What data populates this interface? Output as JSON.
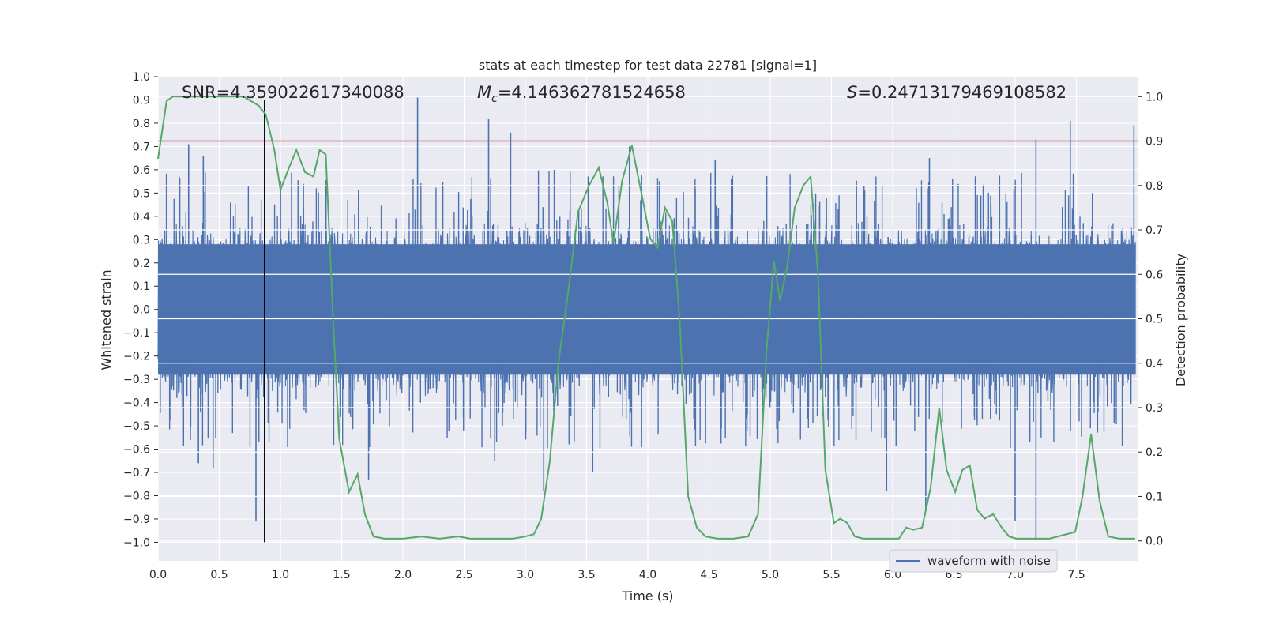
{
  "chart_data": {
    "type": "line",
    "title": "stats at each timestep for test data 22781 [signal=1]",
    "xlabel": "Time (s)",
    "ylabel_left": "Whitened strain",
    "ylabel_right": "Detection probability",
    "xlim": [
      0.0,
      8.0
    ],
    "ylim_left": [
      -1.08,
      1.0
    ],
    "ylim_right": [
      -0.045,
      1.045
    ],
    "x_ticks": [
      "0.0",
      "0.5",
      "1.0",
      "1.5",
      "2.0",
      "2.5",
      "3.0",
      "3.5",
      "4.0",
      "4.5",
      "5.0",
      "5.5",
      "6.0",
      "6.5",
      "7.0",
      "7.5"
    ],
    "x_tick_values": [
      0.0,
      0.5,
      1.0,
      1.5,
      2.0,
      2.5,
      3.0,
      3.5,
      4.0,
      4.5,
      5.0,
      5.5,
      6.0,
      6.5,
      7.0,
      7.5
    ],
    "y_left_ticks": [
      "1.0",
      "0.9",
      "0.8",
      "0.7",
      "0.6",
      "0.5",
      "0.4",
      "0.3",
      "0.2",
      "0.1",
      "0.0",
      "−0.1",
      "−0.2",
      "−0.3",
      "−0.4",
      "−0.5",
      "−0.6",
      "−0.7",
      "−0.8",
      "−0.9",
      "−1.0"
    ],
    "y_left_tick_values": [
      1.0,
      0.9,
      0.8,
      0.7,
      0.6,
      0.5,
      0.4,
      0.3,
      0.2,
      0.1,
      0.0,
      -0.1,
      -0.2,
      -0.3,
      -0.4,
      -0.5,
      -0.6,
      -0.7,
      -0.8,
      -0.9,
      -1.0
    ],
    "y_right_ticks": [
      "1.0",
      "0.9",
      "0.8",
      "0.7",
      "0.6",
      "0.5",
      "0.4",
      "0.3",
      "0.2",
      "0.1",
      "0.0"
    ],
    "y_right_tick_values": [
      1.0,
      0.9,
      0.8,
      0.7,
      0.6,
      0.5,
      0.4,
      0.3,
      0.2,
      0.1,
      0.0
    ],
    "annotations": {
      "snr": "SNR=4.359022617340088",
      "mc_symbol": "M",
      "mc_sub": "c",
      "mc_value": "=4.146362781524658",
      "s_symbol": "S",
      "s_value": "=0.24713179469108582"
    },
    "threshold": {
      "axis": "right",
      "value": 0.9
    },
    "event_marker": {
      "x": 0.87,
      "y_range": [
        -1.0,
        0.9
      ]
    },
    "legend": {
      "label": "waveform with noise",
      "position": "lower-right"
    },
    "series": [
      {
        "name": "waveform with noise",
        "axis": "left",
        "style": "noise band",
        "base_amplitude": 0.3,
        "notable_peaks": [
          {
            "x": 0.25,
            "y": 0.71
          },
          {
            "x": 2.12,
            "y": 0.91
          },
          {
            "x": 2.7,
            "y": 0.82
          },
          {
            "x": 2.88,
            "y": 0.76
          },
          {
            "x": 7.45,
            "y": 0.81
          },
          {
            "x": 7.97,
            "y": 0.79
          },
          {
            "x": 7.17,
            "y": 0.73
          },
          {
            "x": 3.85,
            "y": 0.7
          },
          {
            "x": 0.37,
            "y": 0.66
          },
          {
            "x": 4.55,
            "y": 0.64
          },
          {
            "x": 6.3,
            "y": 0.65
          }
        ],
        "notable_troughs": [
          {
            "x": 0.8,
            "y": -0.91
          },
          {
            "x": 7.17,
            "y": -0.99
          },
          {
            "x": 7.0,
            "y": -0.91
          },
          {
            "x": 6.27,
            "y": -0.86
          },
          {
            "x": 5.95,
            "y": -0.78
          },
          {
            "x": 3.15,
            "y": -0.78
          },
          {
            "x": 1.72,
            "y": -0.73
          },
          {
            "x": 3.55,
            "y": -0.7
          },
          {
            "x": 0.45,
            "y": -0.68
          },
          {
            "x": 0.33,
            "y": -0.66
          },
          {
            "x": 2.75,
            "y": -0.65
          }
        ]
      },
      {
        "name": "detection probability",
        "axis": "right",
        "color": "#55a868",
        "x": [
          0.0,
          0.07,
          0.12,
          0.25,
          0.5,
          0.7,
          0.82,
          0.88,
          0.95,
          1.0,
          1.07,
          1.13,
          1.2,
          1.27,
          1.32,
          1.37,
          1.43,
          1.48,
          1.56,
          1.63,
          1.69,
          1.76,
          1.85,
          2.0,
          2.15,
          2.3,
          2.45,
          2.55,
          2.7,
          2.9,
          3.0,
          3.07,
          3.13,
          3.2,
          3.27,
          3.35,
          3.43,
          3.52,
          3.6,
          3.67,
          3.72,
          3.79,
          3.87,
          3.95,
          4.02,
          4.08,
          4.14,
          4.2,
          4.26,
          4.33,
          4.4,
          4.47,
          4.57,
          4.7,
          4.82,
          4.9,
          4.97,
          5.03,
          5.08,
          5.14,
          5.2,
          5.27,
          5.33,
          5.39,
          5.45,
          5.52,
          5.57,
          5.63,
          5.69,
          5.76,
          5.85,
          5.95,
          6.05,
          6.11,
          6.17,
          6.24,
          6.31,
          6.38,
          6.44,
          6.51,
          6.57,
          6.63,
          6.69,
          6.75,
          6.82,
          6.89,
          6.95,
          7.01,
          7.1,
          7.2,
          7.28,
          7.35,
          7.42,
          7.49,
          7.55,
          7.62,
          7.69,
          7.76,
          7.85,
          7.98
        ],
        "values": [
          0.86,
          0.99,
          1.0,
          1.0,
          1.0,
          1.0,
          0.98,
          0.96,
          0.88,
          0.79,
          0.84,
          0.88,
          0.83,
          0.82,
          0.88,
          0.87,
          0.5,
          0.23,
          0.11,
          0.15,
          0.06,
          0.01,
          0.005,
          0.005,
          0.01,
          0.005,
          0.01,
          0.005,
          0.005,
          0.005,
          0.01,
          0.015,
          0.05,
          0.18,
          0.4,
          0.56,
          0.74,
          0.8,
          0.84,
          0.76,
          0.67,
          0.81,
          0.89,
          0.78,
          0.68,
          0.66,
          0.75,
          0.72,
          0.5,
          0.1,
          0.03,
          0.01,
          0.005,
          0.005,
          0.01,
          0.06,
          0.43,
          0.63,
          0.54,
          0.62,
          0.75,
          0.8,
          0.82,
          0.6,
          0.16,
          0.04,
          0.05,
          0.04,
          0.01,
          0.005,
          0.005,
          0.005,
          0.005,
          0.03,
          0.025,
          0.03,
          0.12,
          0.3,
          0.16,
          0.11,
          0.16,
          0.17,
          0.07,
          0.05,
          0.06,
          0.03,
          0.01,
          0.005,
          0.005,
          0.005,
          0.005,
          0.01,
          0.015,
          0.02,
          0.1,
          0.24,
          0.09,
          0.01,
          0.005,
          0.005
        ]
      }
    ]
  },
  "colors": {
    "background": "#ffffff",
    "plot_bg": "#eaeaf2",
    "grid": "#ffffff",
    "waveform": "#4c72b0",
    "probability": "#55a868",
    "threshold": "#c44e52",
    "marker": "#000000",
    "text": "#262626"
  }
}
